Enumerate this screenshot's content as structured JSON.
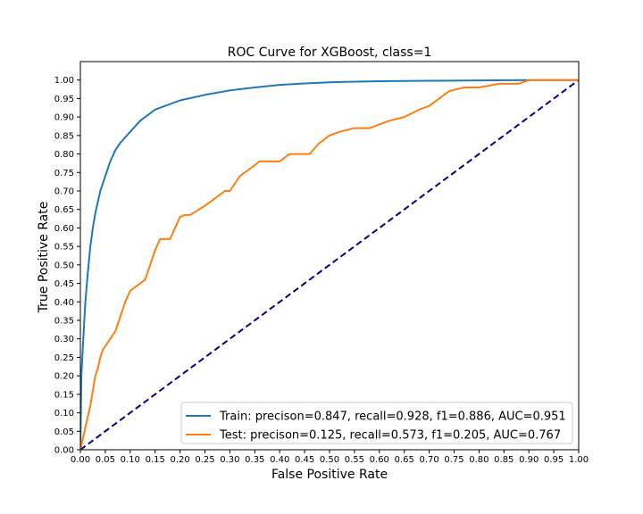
{
  "chart_data": {
    "type": "line",
    "title": "ROC Curve for XGBoost, class=1",
    "xlabel": "False Positive Rate",
    "ylabel": "True Positive Rate",
    "xlim": [
      0,
      1
    ],
    "ylim": [
      0,
      1.05
    ],
    "x_ticks": [
      "0.00",
      "0.05",
      "0.10",
      "0.15",
      "0.20",
      "0.25",
      "0.30",
      "0.35",
      "0.40",
      "0.45",
      "0.50",
      "0.55",
      "0.60",
      "0.65",
      "0.70",
      "0.75",
      "0.80",
      "0.85",
      "0.90",
      "0.95",
      "1.00"
    ],
    "y_ticks": [
      "0.00",
      "0.05",
      "0.10",
      "0.15",
      "0.20",
      "0.25",
      "0.30",
      "0.35",
      "0.40",
      "0.45",
      "0.50",
      "0.55",
      "0.60",
      "0.65",
      "0.70",
      "0.75",
      "0.80",
      "0.85",
      "0.90",
      "0.95",
      "1.00"
    ],
    "grid": false,
    "legend_position": "lower-right",
    "series": [
      {
        "name": "Train: precison=0.847, recall=0.928, f1=0.886, AUC=0.951",
        "color": "#1f77b4",
        "style": "solid",
        "x": [
          0,
          0.002,
          0.005,
          0.01,
          0.015,
          0.02,
          0.025,
          0.03,
          0.04,
          0.05,
          0.06,
          0.07,
          0.08,
          0.1,
          0.12,
          0.15,
          0.2,
          0.25,
          0.3,
          0.35,
          0.4,
          0.45,
          0.5,
          0.6,
          0.7,
          0.8,
          0.9,
          1.0
        ],
        "y": [
          0,
          0.2,
          0.28,
          0.4,
          0.48,
          0.55,
          0.6,
          0.64,
          0.7,
          0.74,
          0.78,
          0.81,
          0.83,
          0.86,
          0.89,
          0.92,
          0.945,
          0.96,
          0.972,
          0.98,
          0.987,
          0.991,
          0.994,
          0.997,
          0.998,
          0.999,
          1.0,
          1.0
        ]
      },
      {
        "name": "Test: precison=0.125, recall=0.573, f1=0.205, AUC=0.767",
        "color": "#ff7f0e",
        "style": "solid",
        "x": [
          0,
          0.005,
          0.01,
          0.015,
          0.02,
          0.025,
          0.03,
          0.035,
          0.04,
          0.045,
          0.05,
          0.06,
          0.07,
          0.08,
          0.09,
          0.1,
          0.11,
          0.12,
          0.13,
          0.14,
          0.15,
          0.16,
          0.17,
          0.18,
          0.19,
          0.2,
          0.21,
          0.22,
          0.25,
          0.27,
          0.29,
          0.3,
          0.32,
          0.34,
          0.36,
          0.38,
          0.4,
          0.42,
          0.46,
          0.48,
          0.5,
          0.52,
          0.55,
          0.58,
          0.6,
          0.62,
          0.65,
          0.68,
          0.7,
          0.72,
          0.74,
          0.77,
          0.8,
          0.84,
          0.86,
          0.88,
          0.9,
          1.0
        ],
        "y": [
          0,
          0.03,
          0.06,
          0.09,
          0.12,
          0.16,
          0.2,
          0.22,
          0.25,
          0.27,
          0.28,
          0.3,
          0.32,
          0.36,
          0.4,
          0.43,
          0.44,
          0.45,
          0.46,
          0.5,
          0.54,
          0.57,
          0.57,
          0.57,
          0.6,
          0.63,
          0.635,
          0.635,
          0.66,
          0.68,
          0.7,
          0.7,
          0.74,
          0.76,
          0.78,
          0.78,
          0.78,
          0.8,
          0.8,
          0.83,
          0.85,
          0.86,
          0.87,
          0.87,
          0.88,
          0.89,
          0.9,
          0.92,
          0.93,
          0.95,
          0.97,
          0.98,
          0.98,
          0.99,
          0.99,
          0.99,
          1.0,
          1.0
        ]
      },
      {
        "name": "",
        "color": "#000080",
        "style": "dashed",
        "x": [
          0,
          1
        ],
        "y": [
          0,
          1
        ]
      }
    ]
  }
}
